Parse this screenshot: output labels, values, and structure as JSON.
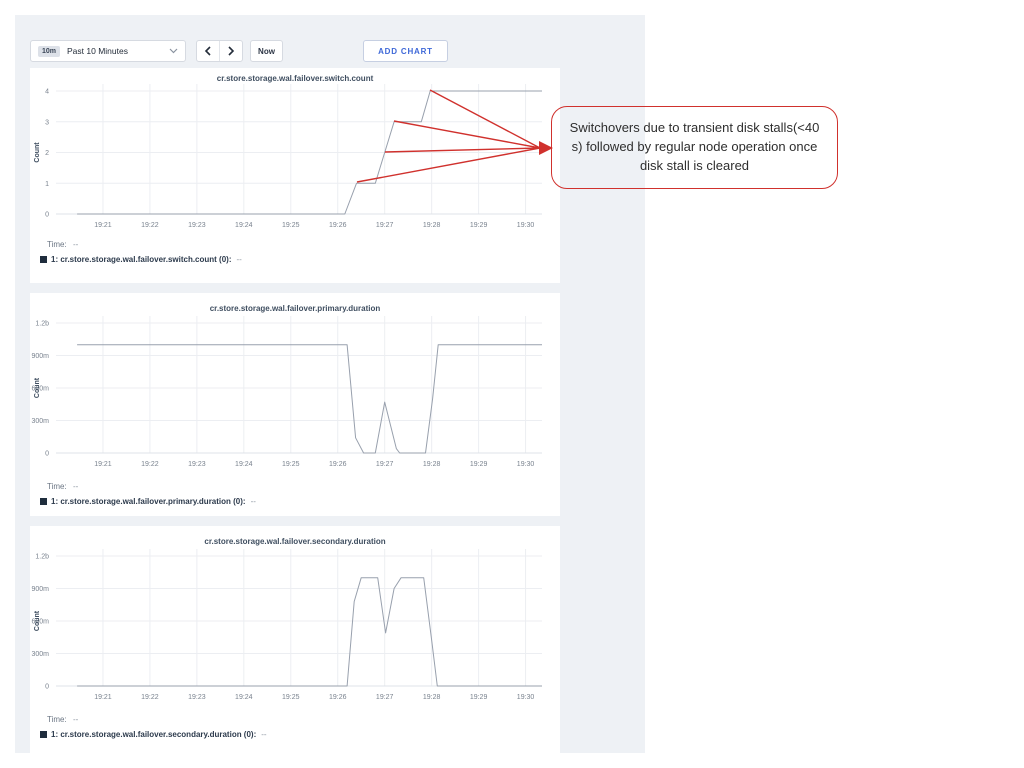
{
  "toolbar": {
    "range_badge": "10m",
    "range_label": "Past 10 Minutes",
    "now_label": "Now",
    "add_chart_label": "ADD CHART"
  },
  "colors": {
    "accent_blue": "#3e68d8",
    "annotation_red": "#d0312d",
    "line_gray": "#98a0ad",
    "legend_swatch": "#1f2d3d",
    "panel_gray": "#eef1f5"
  },
  "annotation": {
    "text": "Switchovers due to transient disk stalls(<40 s) followed by regular node operation once disk stall is cleared",
    "arrow_origins": [
      [
        430,
        90
      ],
      [
        394,
        121
      ],
      [
        385,
        152
      ],
      [
        357,
        182
      ]
    ],
    "arrow_target": [
      540,
      148
    ]
  },
  "chart_data": [
    {
      "type": "line",
      "title": "cr.store.storage.wal.failover.switch.count",
      "ylabel": "Count",
      "xtick_minutes": [
        21,
        22,
        23,
        24,
        25,
        26,
        27,
        28,
        29,
        30
      ],
      "xtick_labels": [
        "19:21",
        "19:22",
        "19:23",
        "19:24",
        "19:25",
        "19:26",
        "19:27",
        "19:28",
        "19:29",
        "19:30"
      ],
      "xlim": [
        20,
        30.35
      ],
      "ytick_values": [
        0,
        1,
        2,
        3,
        4
      ],
      "ytick_labels": [
        "0",
        "1",
        "2",
        "3",
        "4"
      ],
      "ylim": [
        0,
        4
      ],
      "points": [
        [
          20.45,
          0
        ],
        [
          26.15,
          0
        ],
        [
          26.4,
          1
        ],
        [
          26.8,
          1
        ],
        [
          27.0,
          2
        ],
        [
          27.2,
          3
        ],
        [
          27.78,
          3
        ],
        [
          27.97,
          4
        ],
        [
          30.35,
          4
        ]
      ],
      "footer": {
        "time_label": "Time:",
        "time_value": "--",
        "legend_label": "1: cr.store.storage.wal.failover.switch.count (0):",
        "legend_value": "--"
      }
    },
    {
      "type": "line",
      "title": "cr.store.storage.wal.failover.primary.duration",
      "ylabel": "Count",
      "xtick_minutes": [
        21,
        22,
        23,
        24,
        25,
        26,
        27,
        28,
        29,
        30
      ],
      "xtick_labels": [
        "19:21",
        "19:22",
        "19:23",
        "19:24",
        "19:25",
        "19:26",
        "19:27",
        "19:28",
        "19:29",
        "19:30"
      ],
      "xlim": [
        20,
        30.35
      ],
      "ytick_values": [
        0,
        0.3,
        0.6,
        0.9,
        1.2
      ],
      "ytick_labels": [
        "0",
        "300m",
        "600m",
        "900m",
        "1.2b"
      ],
      "ylim": [
        0,
        1.2
      ],
      "points": [
        [
          20.45,
          1
        ],
        [
          26.2,
          1
        ],
        [
          26.38,
          0.14
        ],
        [
          26.55,
          0
        ],
        [
          26.8,
          0
        ],
        [
          27.0,
          0.47
        ],
        [
          27.25,
          0.04
        ],
        [
          27.32,
          0
        ],
        [
          27.87,
          0
        ],
        [
          28.02,
          0.5
        ],
        [
          28.14,
          1
        ],
        [
          30.35,
          1
        ]
      ],
      "footer": {
        "time_label": "Time:",
        "time_value": "--",
        "legend_label": "1: cr.store.storage.wal.failover.primary.duration (0):",
        "legend_value": "--"
      }
    },
    {
      "type": "line",
      "title": "cr.store.storage.wal.failover.secondary.duration",
      "ylabel": "Count",
      "xtick_minutes": [
        21,
        22,
        23,
        24,
        25,
        26,
        27,
        28,
        29,
        30
      ],
      "xtick_labels": [
        "19:21",
        "19:22",
        "19:23",
        "19:24",
        "19:25",
        "19:26",
        "19:27",
        "19:28",
        "19:29",
        "19:30"
      ],
      "xlim": [
        20,
        30.35
      ],
      "ytick_values": [
        0,
        0.3,
        0.6,
        0.9,
        1.2
      ],
      "ytick_labels": [
        "0",
        "300m",
        "600m",
        "900m",
        "1.2b"
      ],
      "ylim": [
        0,
        1.2
      ],
      "points": [
        [
          20.45,
          0
        ],
        [
          26.2,
          0
        ],
        [
          26.35,
          0.78
        ],
        [
          26.5,
          1
        ],
        [
          26.85,
          1
        ],
        [
          27.02,
          0.49
        ],
        [
          27.2,
          0.9
        ],
        [
          27.35,
          1
        ],
        [
          27.83,
          1
        ],
        [
          28.0,
          0.42
        ],
        [
          28.12,
          0
        ],
        [
          30.35,
          0
        ]
      ],
      "footer": {
        "time_label": "Time:",
        "time_value": "--",
        "legend_label": "1: cr.store.storage.wal.failover.secondary.duration (0):",
        "legend_value": "--"
      }
    }
  ]
}
